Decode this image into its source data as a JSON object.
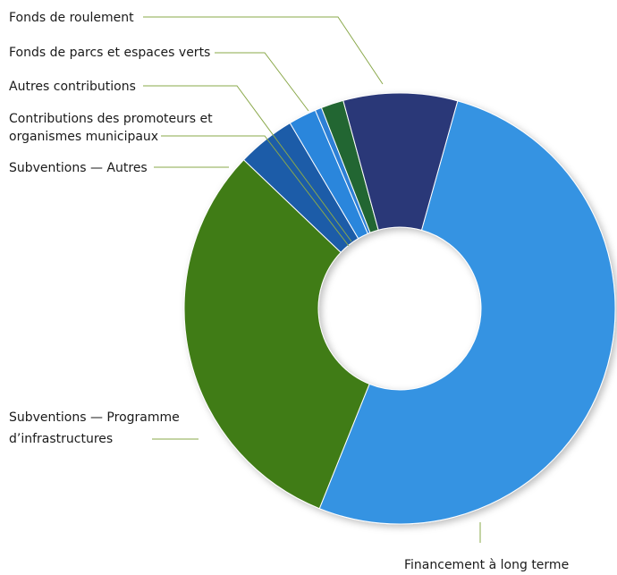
{
  "chart_data": {
    "type": "pie",
    "variant": "donut",
    "title": "",
    "legend": "none",
    "series": [
      {
        "categories": [
          "Financement à long terme",
          "Subventions — Programme d’infrastructures",
          "Subventions — Autres",
          "Contributions des promoteurs et organismes municipaux",
          "Autres contributions",
          "Fonds de parcs et espaces verts",
          "Fonds de roulement"
        ],
        "values": [
          52.0,
          31.2,
          4.4,
          2.1,
          0.5,
          1.7,
          8.6
        ],
        "colors": [
          "#3593e2",
          "#3f7b16",
          "#1f5ca8",
          "#2c86dc",
          "#2f80d6",
          "#206630",
          "#2a3878"
        ]
      }
    ]
  },
  "labels": {
    "fonds_roulement": "Fonds de roulement",
    "fonds_parcs": "Fonds de parcs et espaces verts",
    "autres_contributions": "Autres contributions",
    "contributions_line1": "Contributions des promoteurs et",
    "contributions_line2": "organismes municipaux",
    "subventions_autres": "Subventions — Autres",
    "subventions_prog_line1": "Subventions — Programme",
    "subventions_prog_line2": "d’infrastructures",
    "financement": "Financement à long terme"
  }
}
